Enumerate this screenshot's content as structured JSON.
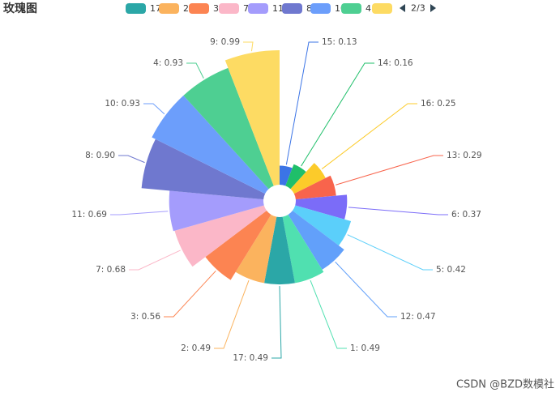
{
  "chart_data": {
    "type": "rose",
    "title": "玫瑰图",
    "categories": [
      "15",
      "14",
      "16",
      "13",
      "6",
      "5",
      "12",
      "1",
      "17",
      "2",
      "3",
      "7",
      "11",
      "8",
      "10",
      "4",
      "9"
    ],
    "values": [
      0.13,
      0.16,
      0.25,
      0.29,
      0.37,
      0.42,
      0.47,
      0.49,
      0.49,
      0.49,
      0.56,
      0.68,
      0.69,
      0.9,
      0.93,
      0.93,
      0.99
    ],
    "value_labels": [
      "15: 0.13",
      "14: 0.16",
      "16: 0.25",
      "13: 0.29",
      "6: 0.37",
      "5: 0.42",
      "12: 0.47",
      "1: 0.49",
      "17: 0.49",
      "2: 0.49",
      "3: 0.56",
      "7: 0.68",
      "11: 0.69",
      "8: 0.90",
      "10: 0.93",
      "4: 0.93",
      "9: 0.99"
    ],
    "colors": [
      "#3b74e6",
      "#1fbf6a",
      "#fccb2a",
      "#f8644c",
      "#7b6cf8",
      "#5bcffa",
      "#62a0fa",
      "#50e0b0",
      "#2ba7a7",
      "#fbb35e",
      "#fc8452",
      "#fbb7c8",
      "#a49cfc",
      "#6f78cf",
      "#6c9efb",
      "#4ecf92",
      "#fddb63"
    ],
    "legend": {
      "items": [
        "17",
        "2",
        "3",
        "7",
        "11",
        "8",
        "10",
        "4",
        "9"
      ],
      "colors": [
        "#2ba7a7",
        "#fbb35e",
        "#fc8452",
        "#fbb7c8",
        "#a49cfc",
        "#6f78cf",
        "#6c9efb",
        "#4ecf92",
        "#fddb63"
      ],
      "page": "2/3"
    },
    "watermark": "CSDN @BZD数模社"
  }
}
